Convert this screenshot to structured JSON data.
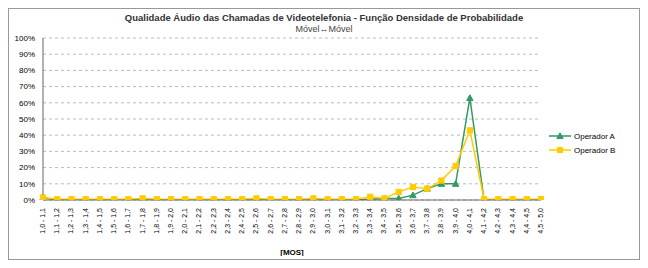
{
  "chart_data": {
    "type": "line",
    "title": "Qualidade Áudio das Chamadas de Videotelefonia - Função Densidade de Probabilidade",
    "subtitle": "Móvel↔Móvel",
    "x_label": "[MOS]",
    "categories": [
      "1,0 - 1,1",
      "1,1 - 1,2",
      "1,2 - 1,3",
      "1,3 - 1,4",
      "1,4 - 1,5",
      "1,5 - 1,6",
      "1,6 - 1,7",
      "1,7 - 1,8",
      "1,8 - 1,9",
      "1,9 - 2,0",
      "2,0 - 2,1",
      "2,1 - 2,2",
      "2,2 - 2,3",
      "2,3 - 2,4",
      "2,4 - 2,5",
      "2,5 - 2,6",
      "2,6 - 2,7",
      "2,7 - 2,8",
      "2,8 - 2,9",
      "2,9 - 3,0",
      "3,0 - 3,1",
      "3,1 - 3,2",
      "3,2 - 3,3",
      "3,3 - 3,4",
      "3,4 - 3,5",
      "3,5 - 3,6",
      "3,6 - 3,7",
      "3,7 - 3,8",
      "3,8 - 3,9",
      "3,9 - 4,0",
      "4,0 - 4,1",
      "4,1 - 4,2",
      "4,2 - 4,3",
      "4,3 - 4,4",
      "4,4 - 4,5",
      "4,5 - 5,0"
    ],
    "series": [
      {
        "name": "Operador A",
        "color": "#339966",
        "marker": "triangle",
        "values": [
          1.5,
          0,
          0,
          0,
          0,
          0,
          0,
          0,
          0,
          0,
          0,
          0,
          0,
          0,
          0,
          0,
          0,
          0,
          0,
          0,
          0,
          0,
          0,
          0.5,
          1,
          1,
          3,
          7,
          10,
          10,
          63,
          0,
          0,
          0,
          0,
          0
        ]
      },
      {
        "name": "Operador B",
        "color": "#ffcc00",
        "marker": "square",
        "values": [
          1.5,
          0.5,
          0.5,
          0.5,
          0.5,
          0.5,
          0.5,
          1,
          0.5,
          0.5,
          0.5,
          0.5,
          0.5,
          0.5,
          0.5,
          1,
          0.5,
          0.5,
          0.5,
          1,
          0.5,
          0.5,
          0.5,
          2,
          1,
          5,
          8,
          7,
          12,
          21,
          43,
          0.5,
          0.5,
          0.5,
          0.5,
          0.5
        ]
      }
    ],
    "ylim": [
      0,
      100
    ],
    "yticks": [
      {
        "value": 0,
        "label": "0%"
      },
      {
        "value": 10,
        "label": "10%"
      },
      {
        "value": 20,
        "label": "20%"
      },
      {
        "value": 30,
        "label": "30%"
      },
      {
        "value": 40,
        "label": "40%"
      },
      {
        "value": 50,
        "label": "50%"
      },
      {
        "value": 60,
        "label": "60%"
      },
      {
        "value": 70,
        "label": "70%"
      },
      {
        "value": 80,
        "label": "80%"
      },
      {
        "value": 90,
        "label": "90%"
      },
      {
        "value": 100,
        "label": "100%"
      }
    ],
    "grid": true,
    "legend": "right"
  }
}
